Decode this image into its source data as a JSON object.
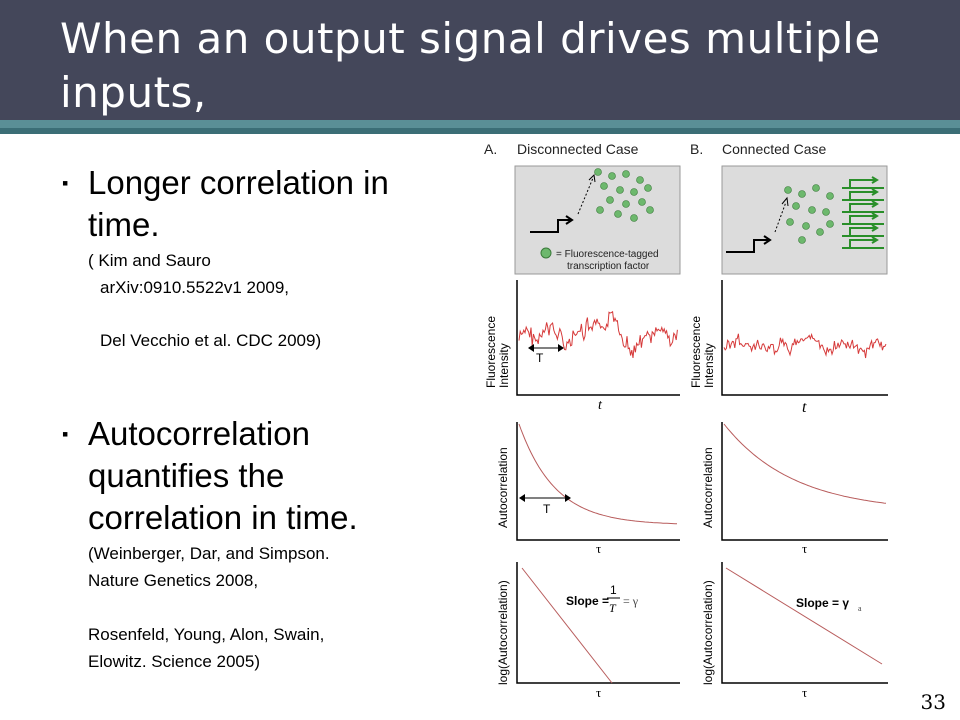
{
  "slide": {
    "title": "When an output signal drives multiple inputs,",
    "page_number": "33"
  },
  "bullets": [
    {
      "text_lines": [
        "Longer correlation in",
        "time."
      ],
      "ref_lines": [
        "( Kim and Sauro",
        "arXiv:0910.5522v1 2009,",
        "Del Vecchio et al. CDC 2009)"
      ]
    },
    {
      "text_lines": [
        "Autocorrelation",
        "quantifies the",
        "correlation in time."
      ],
      "ref_lines": [
        "(Weinberger, Dar, and Simpson.",
        "Nature Genetics 2008,",
        "Rosenfeld, Young, Alon, Swain,",
        "Elowitz. Science 2005)"
      ]
    }
  ],
  "figure": {
    "panel_a": {
      "letter": "A.",
      "title": "Disconnected Case"
    },
    "panel_b": {
      "letter": "B.",
      "title": "Connected Case"
    },
    "legend_line1": "= Fluorescence-tagged",
    "legend_line2": "transcription factor",
    "ylabel_fluor_1": "Fluorescence",
    "ylabel_fluor_2": "Intensity",
    "ylabel_auto": "Autocorrelation",
    "ylabel_log": "log(Autocorrelation)",
    "xlabel_t": "t",
    "xlabel_tau": "τ",
    "T_label": "T",
    "slope_a_prefix": "Slope =",
    "slope_a_num": "1",
    "slope_a_den": "T",
    "slope_a_suffix": "= γ",
    "slope_b": "Slope = γ",
    "slope_b_sub": "a",
    "colors": {
      "signal": "#d63a3a",
      "decay": "#b85c5c",
      "dot": "#6db86d",
      "genes": "#2a8f2a"
    }
  }
}
